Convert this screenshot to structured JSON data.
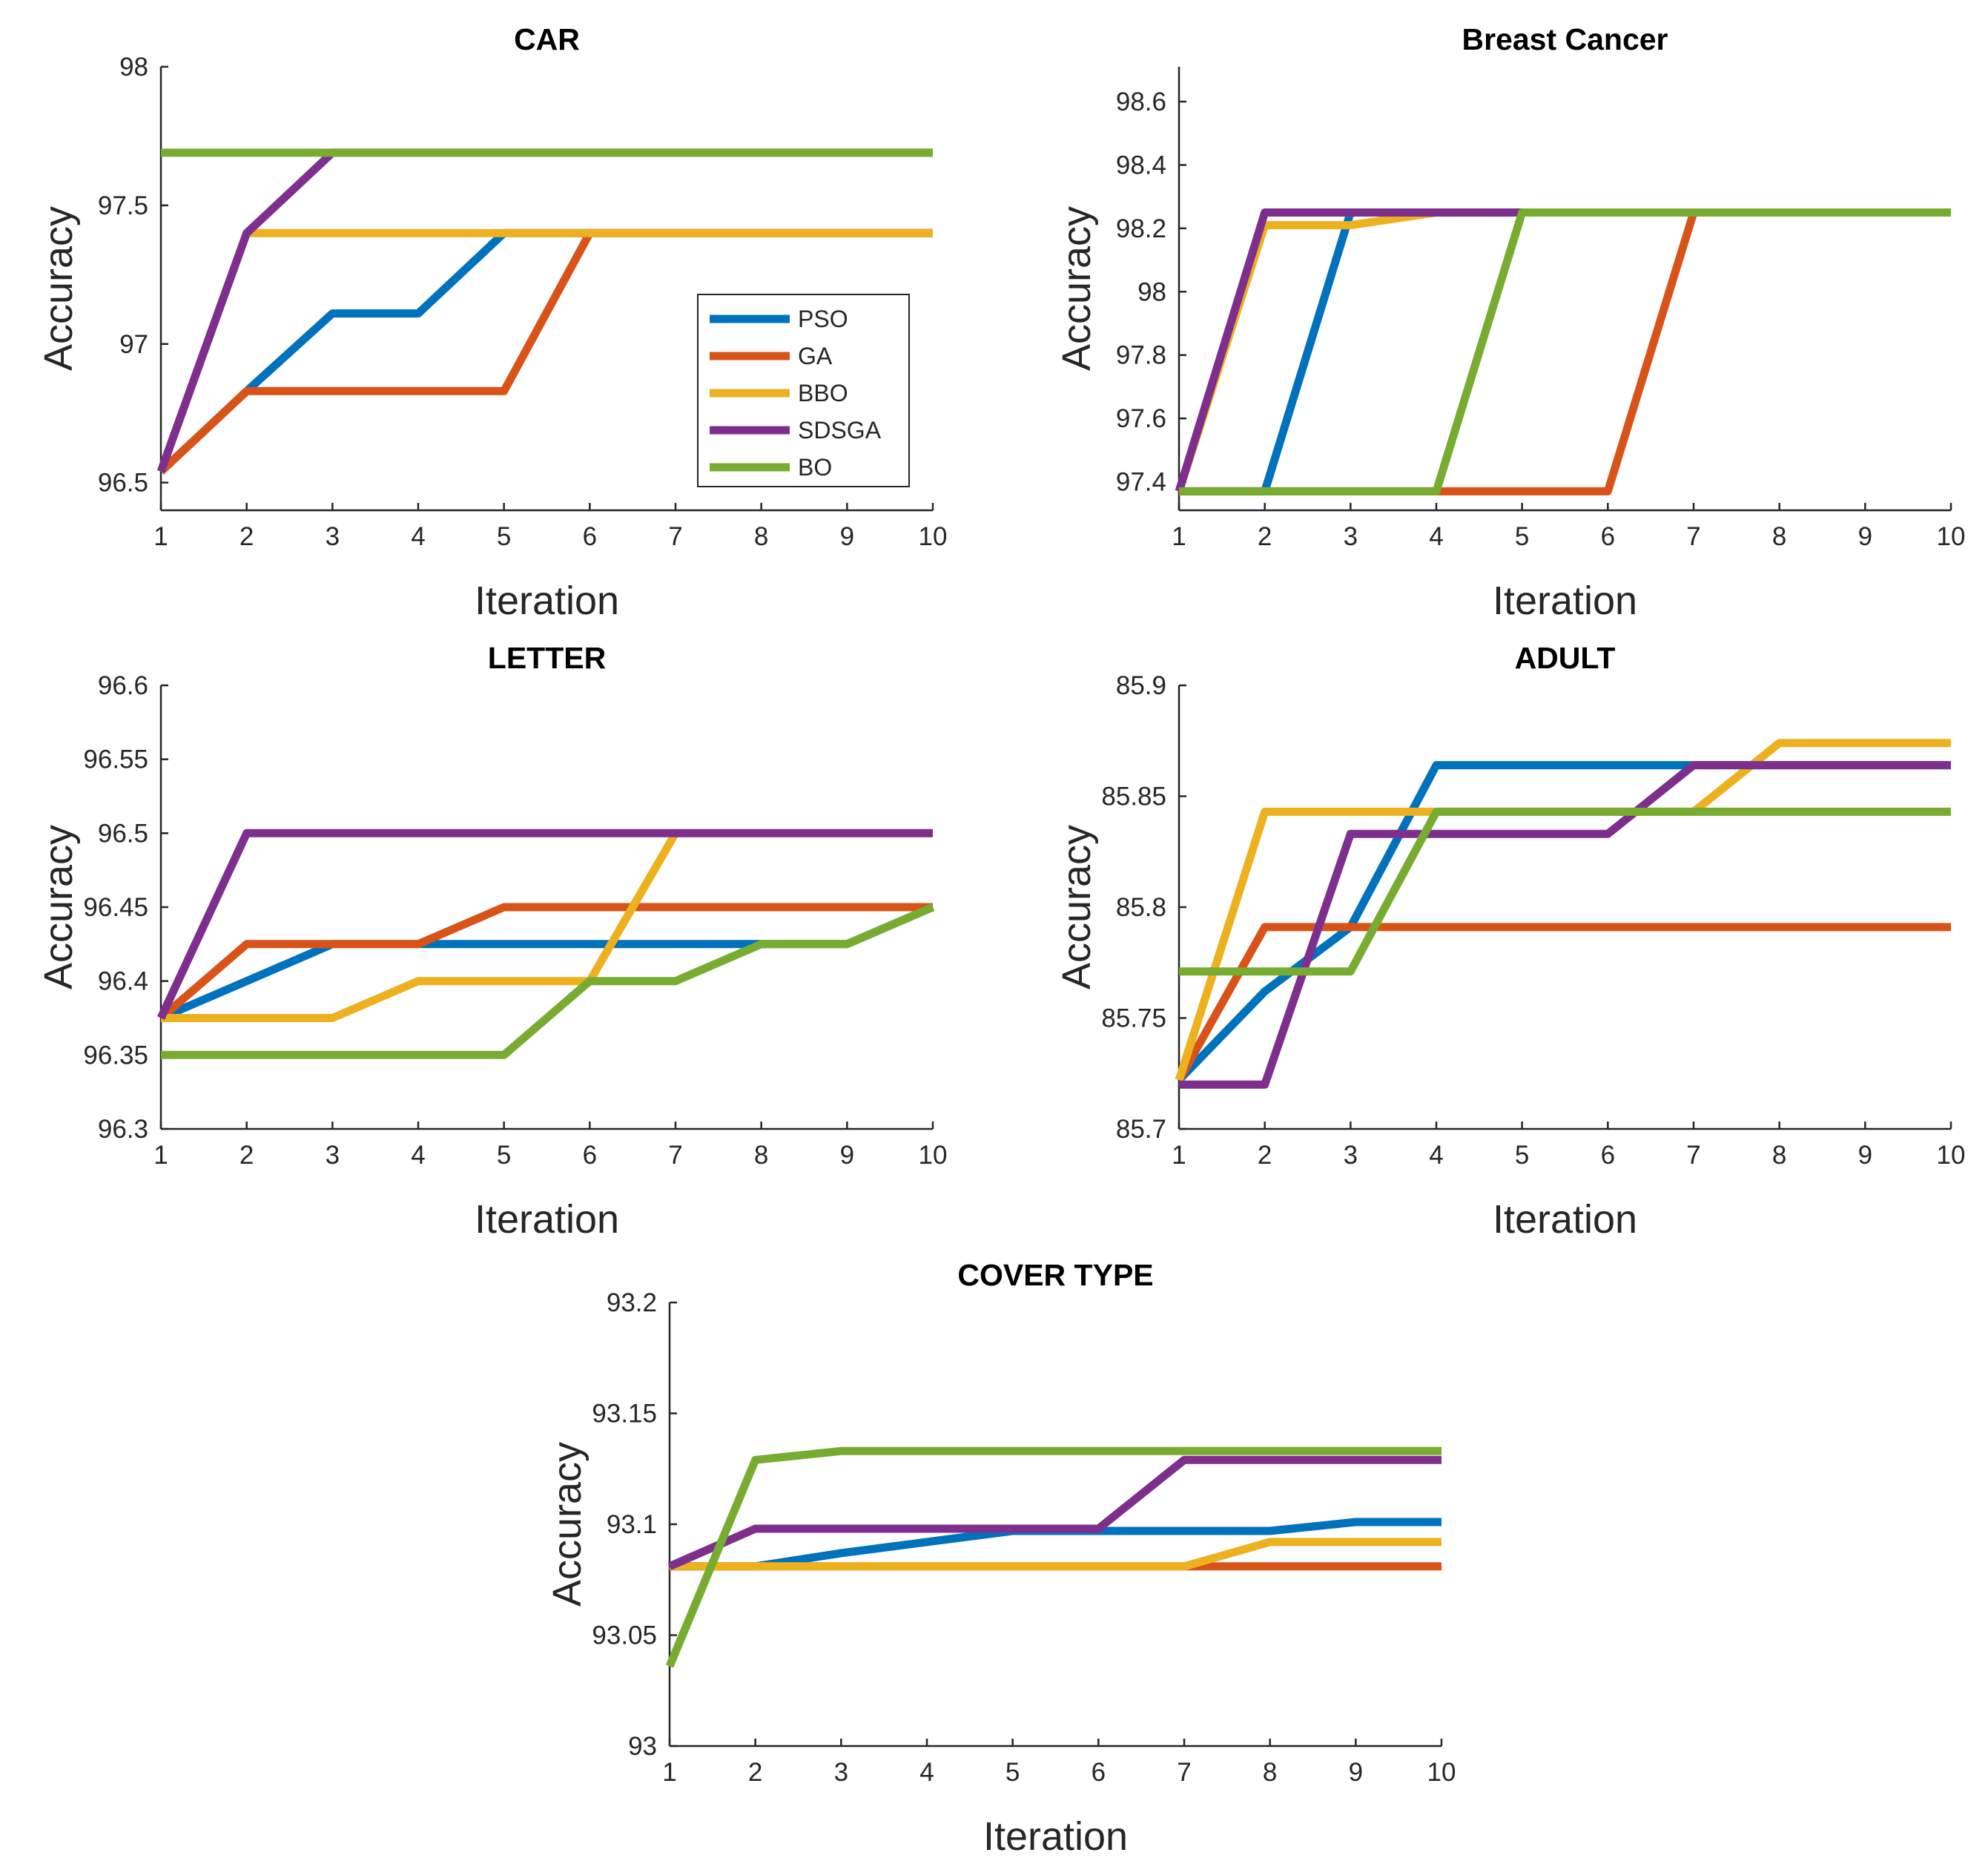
{
  "legend": {
    "entries": [
      {
        "name": "PSO",
        "color": "#0072BD"
      },
      {
        "name": "GA",
        "color": "#D95319"
      },
      {
        "name": "BBO",
        "color": "#EDB120"
      },
      {
        "name": "SDSGA",
        "color": "#7E2F8E"
      },
      {
        "name": "BO",
        "color": "#77AC30"
      }
    ]
  },
  "chart_data": [
    {
      "type": "line",
      "title": "CAR",
      "xlabel": "Iteration",
      "ylabel": "Accuracy",
      "x": [
        1,
        2,
        3,
        4,
        5,
        6,
        7,
        8,
        9,
        10
      ],
      "xlim": [
        1,
        10
      ],
      "ylim": [
        96.4,
        98
      ],
      "xticks": [
        "1",
        "2",
        "3",
        "4",
        "5",
        "6",
        "7",
        "8",
        "9",
        "10"
      ],
      "yticks": [
        {
          "v": 96.5,
          "label": "96.5"
        },
        {
          "v": 97,
          "label": "97"
        },
        {
          "v": 97.5,
          "label": "97.5"
        },
        {
          "v": 98,
          "label": "98"
        }
      ],
      "legend_position": "inside-lower-right",
      "series": [
        {
          "name": "PSO",
          "values": [
            96.54,
            96.83,
            97.11,
            97.11,
            97.4,
            97.4,
            97.4,
            97.4,
            97.4,
            97.4
          ]
        },
        {
          "name": "GA",
          "values": [
            96.54,
            96.83,
            96.83,
            96.83,
            96.83,
            97.4,
            97.4,
            97.4,
            97.4,
            97.4
          ]
        },
        {
          "name": "BBO",
          "values": [
            96.54,
            97.4,
            97.4,
            97.4,
            97.4,
            97.4,
            97.4,
            97.4,
            97.4,
            97.4
          ]
        },
        {
          "name": "SDSGA",
          "values": [
            96.54,
            97.4,
            97.69,
            97.69,
            97.69,
            97.69,
            97.69,
            97.69,
            97.69,
            97.69
          ]
        },
        {
          "name": "BO",
          "values": [
            97.69,
            97.69,
            97.69,
            97.69,
            97.69,
            97.69,
            97.69,
            97.69,
            97.69,
            97.69
          ]
        }
      ]
    },
    {
      "type": "line",
      "title": "Breast Cancer",
      "xlabel": "Iteration",
      "ylabel": "Accuracy",
      "x": [
        1,
        2,
        3,
        4,
        5,
        6,
        7,
        8,
        9,
        10
      ],
      "xlim": [
        1,
        10
      ],
      "ylim": [
        97.31,
        98.71
      ],
      "xticks": [
        "1",
        "2",
        "3",
        "4",
        "5",
        "6",
        "7",
        "8",
        "9",
        "10"
      ],
      "yticks": [
        {
          "v": 97.4,
          "label": "97.4"
        },
        {
          "v": 97.6,
          "label": "97.6"
        },
        {
          "v": 97.8,
          "label": "97.8"
        },
        {
          "v": 98,
          "label": "98"
        },
        {
          "v": 98.2,
          "label": "98.2"
        },
        {
          "v": 98.4,
          "label": "98.4"
        },
        {
          "v": 98.6,
          "label": "98.6"
        }
      ],
      "series": [
        {
          "name": "PSO",
          "values": [
            97.37,
            97.37,
            98.25,
            98.25,
            98.25,
            98.25,
            98.25,
            98.25,
            98.25,
            98.25
          ]
        },
        {
          "name": "GA",
          "values": [
            97.37,
            97.37,
            97.37,
            97.37,
            97.37,
            97.37,
            98.25,
            98.25,
            98.25,
            98.25
          ]
        },
        {
          "name": "BBO",
          "values": [
            97.37,
            98.21,
            98.21,
            98.25,
            98.25,
            98.25,
            98.25,
            98.25,
            98.25,
            98.25
          ]
        },
        {
          "name": "SDSGA",
          "values": [
            97.37,
            98.25,
            98.25,
            98.25,
            98.25,
            98.25,
            98.25,
            98.25,
            98.25,
            98.25
          ]
        },
        {
          "name": "BO",
          "values": [
            97.37,
            97.37,
            97.37,
            97.37,
            98.25,
            98.25,
            98.25,
            98.25,
            98.25,
            98.25
          ]
        }
      ]
    },
    {
      "type": "line",
      "title": "LETTER",
      "xlabel": "Iteration",
      "ylabel": "Accuracy",
      "x": [
        1,
        2,
        3,
        4,
        5,
        6,
        7,
        8,
        9,
        10
      ],
      "xlim": [
        1,
        10
      ],
      "ylim": [
        96.3,
        96.6
      ],
      "xticks": [
        "1",
        "2",
        "3",
        "4",
        "5",
        "6",
        "7",
        "8",
        "9",
        "10"
      ],
      "yticks": [
        {
          "v": 96.3,
          "label": "96.3"
        },
        {
          "v": 96.35,
          "label": "96.35"
        },
        {
          "v": 96.4,
          "label": "96.4"
        },
        {
          "v": 96.45,
          "label": "96.45"
        },
        {
          "v": 96.5,
          "label": "96.5"
        },
        {
          "v": 96.55,
          "label": "96.55"
        },
        {
          "v": 96.6,
          "label": "96.6"
        }
      ],
      "series": [
        {
          "name": "PSO",
          "values": [
            96.375,
            96.4,
            96.425,
            96.425,
            96.425,
            96.425,
            96.425,
            96.425,
            96.425,
            96.45
          ]
        },
        {
          "name": "GA",
          "values": [
            96.375,
            96.425,
            96.425,
            96.425,
            96.45,
            96.45,
            96.45,
            96.45,
            96.45,
            96.45
          ]
        },
        {
          "name": "BBO",
          "values": [
            96.375,
            96.375,
            96.375,
            96.4,
            96.4,
            96.4,
            96.5,
            96.5,
            96.5,
            96.5
          ]
        },
        {
          "name": "SDSGA",
          "values": [
            96.375,
            96.5,
            96.5,
            96.5,
            96.5,
            96.5,
            96.5,
            96.5,
            96.5,
            96.5
          ]
        },
        {
          "name": "BO",
          "values": [
            96.35,
            96.35,
            96.35,
            96.35,
            96.35,
            96.4,
            96.4,
            96.425,
            96.425,
            96.45
          ]
        }
      ]
    },
    {
      "type": "line",
      "title": "ADULT",
      "xlabel": "Iteration",
      "ylabel": "Accuracy",
      "x": [
        1,
        2,
        3,
        4,
        5,
        6,
        7,
        8,
        9,
        10
      ],
      "xlim": [
        1,
        10
      ],
      "ylim": [
        85.7,
        85.9
      ],
      "xticks": [
        "1",
        "2",
        "3",
        "4",
        "5",
        "6",
        "7",
        "8",
        "9",
        "10"
      ],
      "yticks": [
        {
          "v": 85.7,
          "label": "85.7"
        },
        {
          "v": 85.75,
          "label": "85.75"
        },
        {
          "v": 85.8,
          "label": "85.8"
        },
        {
          "v": 85.85,
          "label": "85.85"
        },
        {
          "v": 85.9,
          "label": "85.9"
        }
      ],
      "series": [
        {
          "name": "PSO",
          "values": [
            85.722,
            85.762,
            85.791,
            85.864,
            85.864,
            85.864,
            85.864,
            85.864,
            85.864,
            85.864
          ]
        },
        {
          "name": "GA",
          "values": [
            85.722,
            85.791,
            85.791,
            85.791,
            85.791,
            85.791,
            85.791,
            85.791,
            85.791,
            85.791
          ]
        },
        {
          "name": "BBO",
          "values": [
            85.722,
            85.843,
            85.843,
            85.843,
            85.843,
            85.843,
            85.843,
            85.874,
            85.874,
            85.874
          ]
        },
        {
          "name": "SDSGA",
          "values": [
            85.72,
            85.72,
            85.833,
            85.833,
            85.833,
            85.833,
            85.864,
            85.864,
            85.864,
            85.864
          ]
        },
        {
          "name": "BO",
          "values": [
            85.771,
            85.771,
            85.771,
            85.843,
            85.843,
            85.843,
            85.843,
            85.843,
            85.843,
            85.843
          ]
        }
      ]
    },
    {
      "type": "line",
      "title": "COVER TYPE",
      "xlabel": "Iteration",
      "ylabel": "Accuracy",
      "x": [
        1,
        2,
        3,
        4,
        5,
        6,
        7,
        8,
        9,
        10
      ],
      "xlim": [
        1,
        10
      ],
      "ylim": [
        93,
        93.2
      ],
      "xticks": [
        "1",
        "2",
        "3",
        "4",
        "5",
        "6",
        "7",
        "8",
        "9",
        "10"
      ],
      "yticks": [
        {
          "v": 93,
          "label": "93"
        },
        {
          "v": 93.05,
          "label": "93.05"
        },
        {
          "v": 93.1,
          "label": "93.1"
        },
        {
          "v": 93.15,
          "label": "93.15"
        },
        {
          "v": 93.2,
          "label": "93.2"
        }
      ],
      "series": [
        {
          "name": "PSO",
          "values": [
            93.081,
            93.081,
            93.087,
            93.092,
            93.097,
            93.097,
            93.097,
            93.097,
            93.101,
            93.101
          ]
        },
        {
          "name": "GA",
          "values": [
            93.081,
            93.081,
            93.081,
            93.081,
            93.081,
            93.081,
            93.081,
            93.081,
            93.081,
            93.081
          ]
        },
        {
          "name": "BBO",
          "values": [
            93.081,
            93.081,
            93.081,
            93.081,
            93.081,
            93.081,
            93.081,
            93.092,
            93.092,
            93.092
          ]
        },
        {
          "name": "SDSGA",
          "values": [
            93.081,
            93.098,
            93.098,
            93.098,
            93.098,
            93.098,
            93.129,
            93.129,
            93.129,
            93.129
          ]
        },
        {
          "name": "BO",
          "values": [
            93.036,
            93.129,
            93.133,
            93.133,
            93.133,
            93.133,
            93.133,
            93.133,
            93.133,
            93.133
          ]
        }
      ]
    }
  ]
}
